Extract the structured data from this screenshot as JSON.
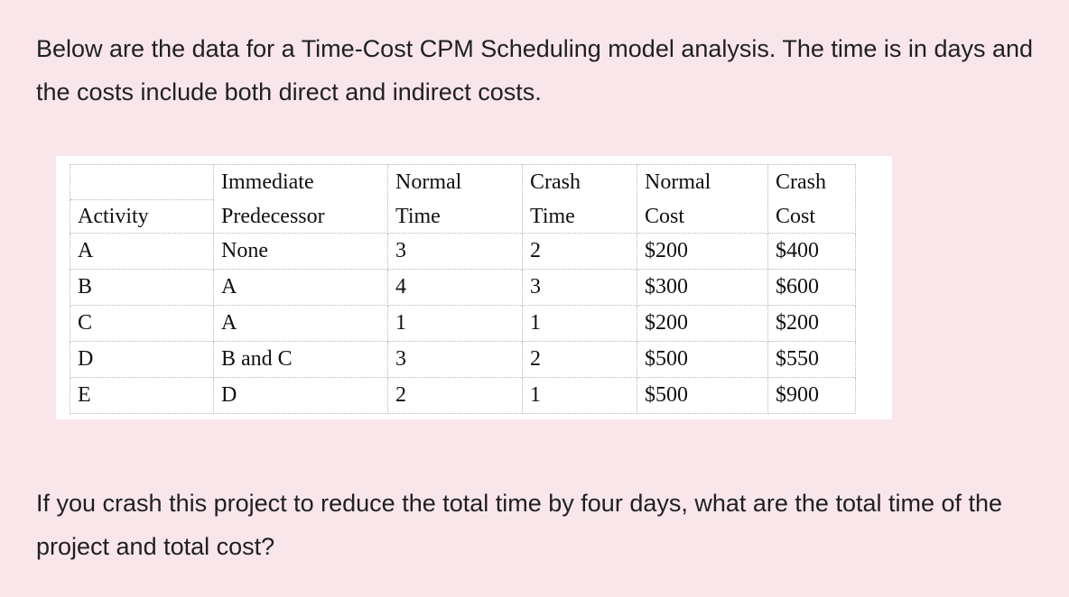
{
  "intro_text": "Below are the data for a Time-Cost CPM Scheduling model analysis. The time is in days and the costs include both direct and indirect costs.",
  "table": {
    "header_row1": {
      "activity": "",
      "predecessor": "Immediate",
      "normal_time": "Normal",
      "crash_time": "Crash",
      "normal_cost": "Normal",
      "crash_cost": "Crash"
    },
    "header_row2": {
      "activity": "Activity",
      "predecessor": "Predecessor",
      "normal_time": "Time",
      "crash_time": "Time",
      "normal_cost": "Cost",
      "crash_cost": "Cost"
    },
    "rows": [
      {
        "activity": "A",
        "predecessor": "None",
        "normal_time": "3",
        "crash_time": "2",
        "normal_cost": "$200",
        "crash_cost": "$400"
      },
      {
        "activity": "B",
        "predecessor": "A",
        "normal_time": "4",
        "crash_time": "3",
        "normal_cost": "$300",
        "crash_cost": "$600"
      },
      {
        "activity": "C",
        "predecessor": "A",
        "normal_time": "1",
        "crash_time": "1",
        "normal_cost": "$200",
        "crash_cost": "$200"
      },
      {
        "activity": "D",
        "predecessor": "B and C",
        "normal_time": "3",
        "crash_time": "2",
        "normal_cost": "$500",
        "crash_cost": "$550"
      },
      {
        "activity": "E",
        "predecessor": "D",
        "normal_time": "2",
        "crash_time": "1",
        "normal_cost": "$500",
        "crash_cost": "$900"
      }
    ]
  },
  "question_text": "If you crash this project to reduce the total time by four days, what are the total time of the project and total cost?"
}
